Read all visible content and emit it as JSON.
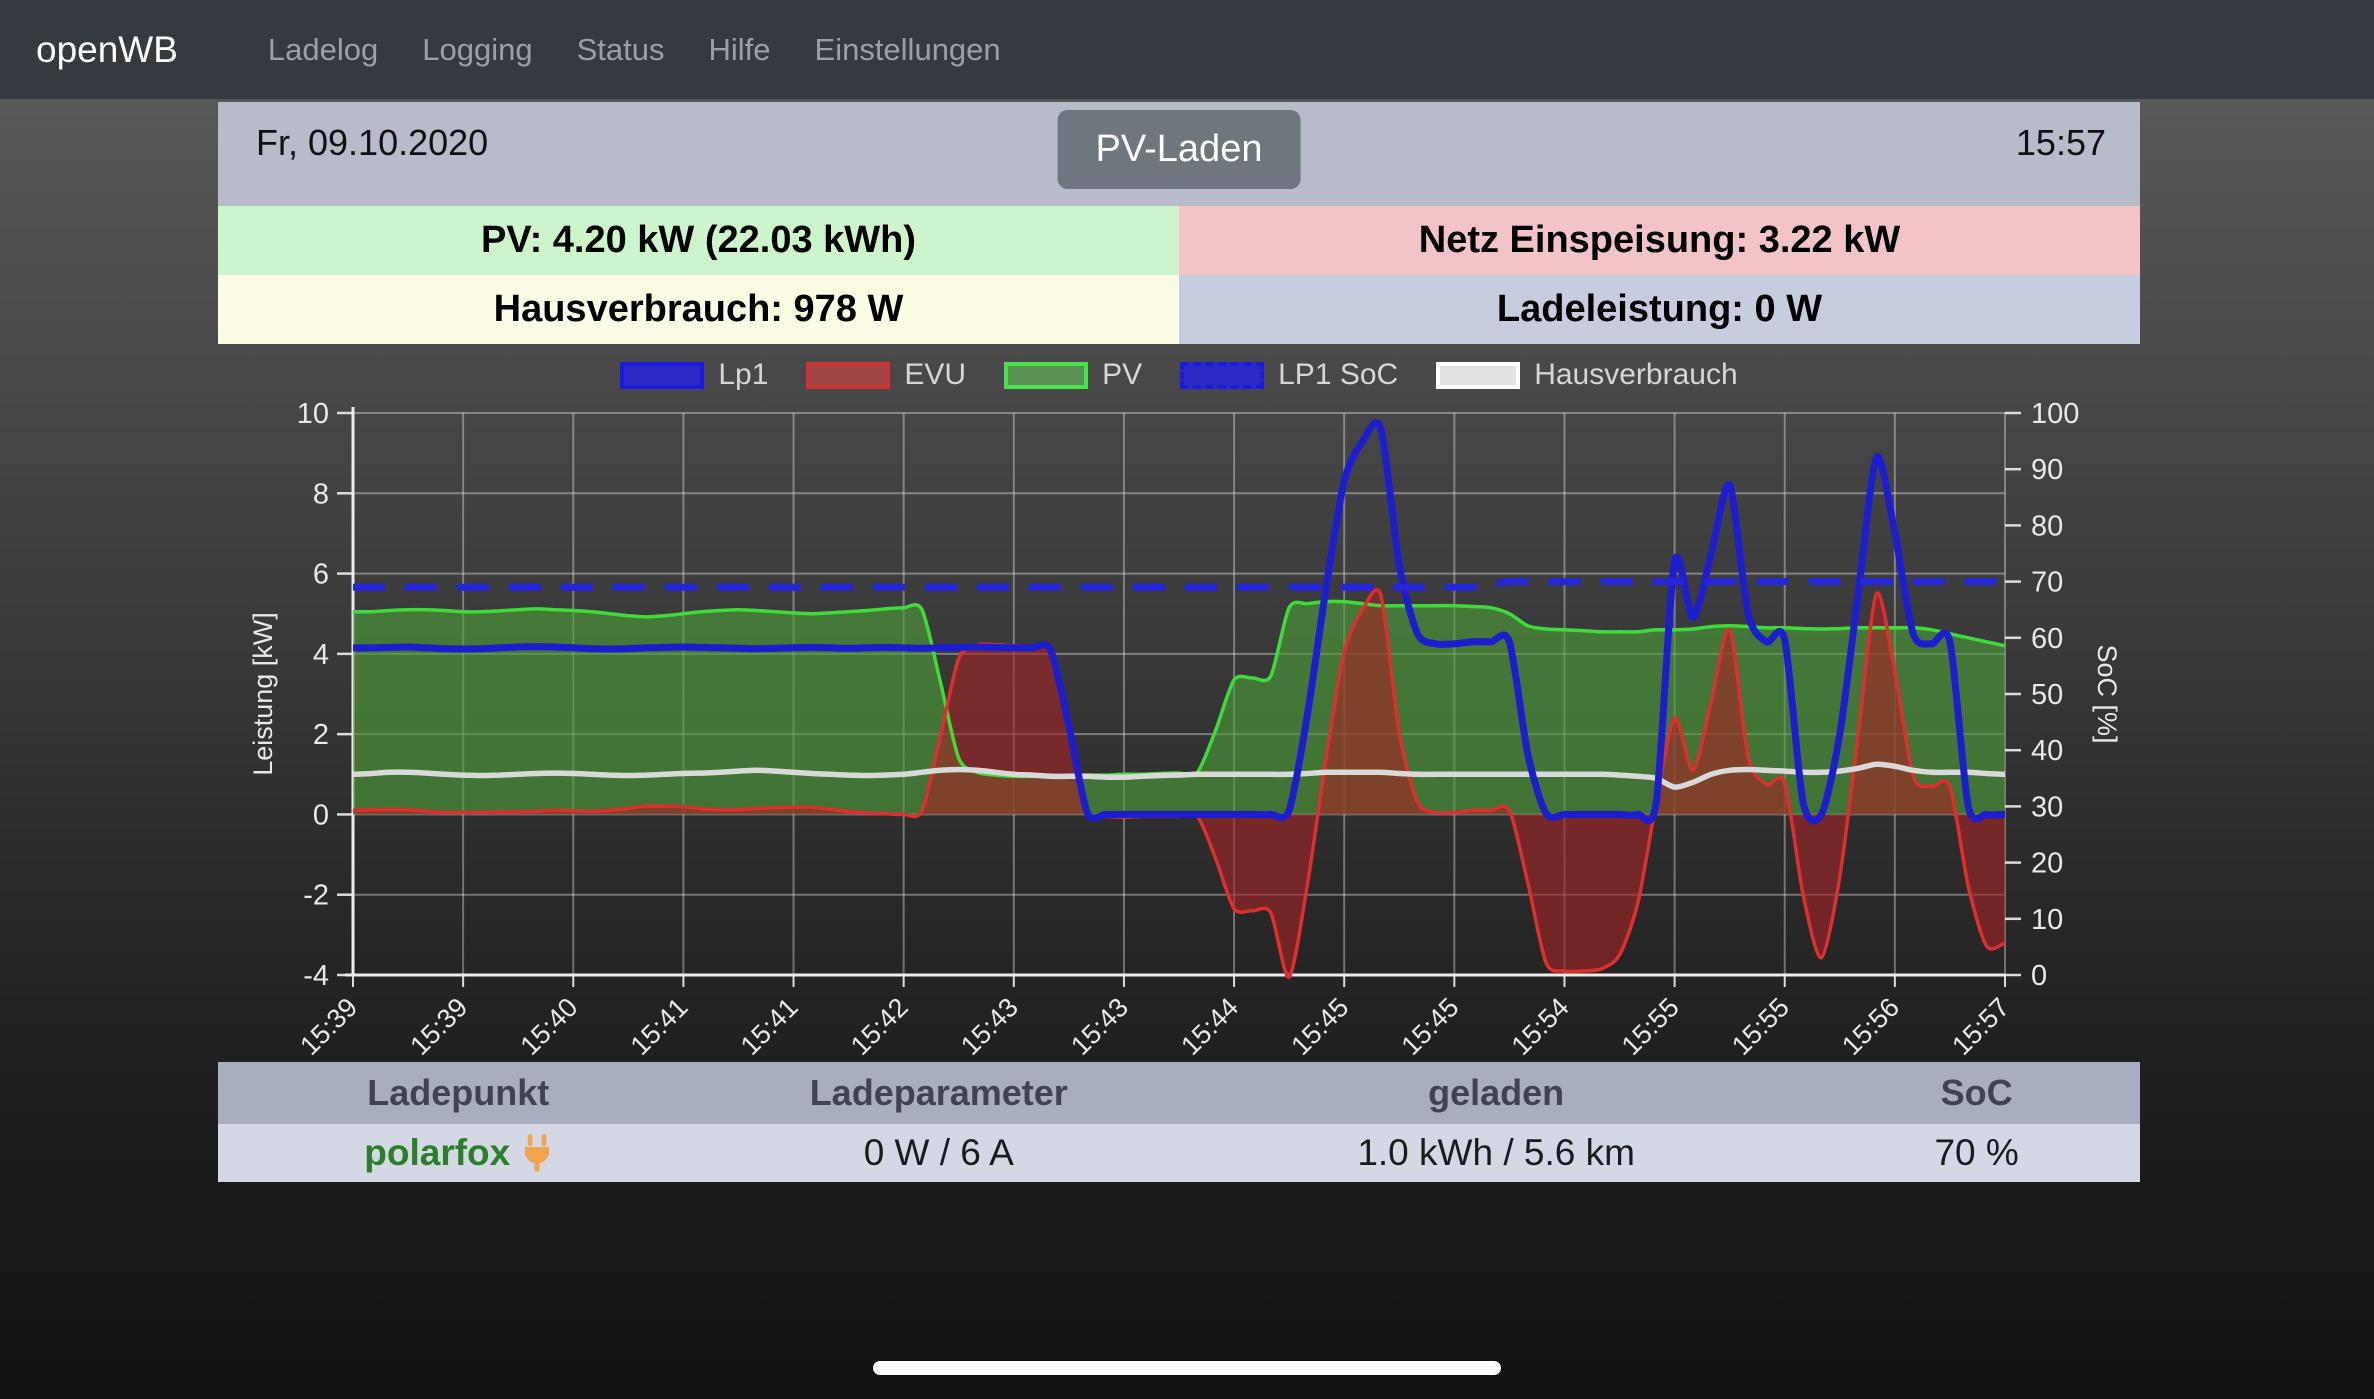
{
  "navbar": {
    "brand": "openWB",
    "items": [
      "Ladelog",
      "Logging",
      "Status",
      "Hilfe",
      "Einstellungen"
    ]
  },
  "header": {
    "date": "Fr, 09.10.2020",
    "mode_button": "PV-Laden",
    "time": "15:57"
  },
  "info_boxes": {
    "pv": {
      "label": "PV: 4.20 kW (22.03 kWh)",
      "bg": "#ccf5cb"
    },
    "grid": {
      "label": "Netz Einspeisung: 3.22 kW",
      "bg": "#f2c4c8"
    },
    "house": {
      "label": "Hausverbrauch: 978 W",
      "bg": "#fcfbe4"
    },
    "charge": {
      "label": "Ladeleistung: 0 W",
      "bg": "#c6cddf"
    }
  },
  "chart_data": {
    "type": "line",
    "title": "",
    "xlabel": "",
    "ylabel": "Leistung [kW]",
    "y2label": "SoC [%]",
    "grid": true,
    "legend_position": "top",
    "points_per_label": 6,
    "x_tick_labels": [
      "15:39",
      "15:39",
      "15:40",
      "15:41",
      "15:41",
      "15:42",
      "15:43",
      "15:43",
      "15:44",
      "15:45",
      "15:45",
      "15:54",
      "15:55",
      "15:55",
      "15:56",
      "15:57"
    ],
    "y_left": {
      "label": "Leistung [kW]",
      "min": -4,
      "max": 10,
      "ticks": [
        10,
        8,
        6,
        4,
        2,
        0,
        -2,
        -4
      ]
    },
    "y_right": {
      "label": "SoC [%]",
      "min": 0,
      "max": 100,
      "ticks": [
        100,
        90,
        80,
        70,
        60,
        50,
        40,
        30,
        20,
        10,
        0
      ]
    },
    "legend": [
      {
        "label": "Lp1",
        "fill": "#2a2ac4",
        "border": "#1a1ae0",
        "dashed": false
      },
      {
        "label": "EVU",
        "fill": "#9e4545",
        "border": "#cc3333",
        "dashed": false
      },
      {
        "label": "PV",
        "fill": "#5a9150",
        "border": "#4ae24a",
        "dashed": false
      },
      {
        "label": "LP1 SoC",
        "fill": "#2a2ac4",
        "border": "#1a1ae0",
        "dashed": true
      },
      {
        "label": "Hausverbrauch",
        "fill": "#e2e2e2",
        "border": "#ffffff",
        "dashed": false
      }
    ],
    "series": [
      {
        "name": "Lp1",
        "axis": "left",
        "color": "#1d1dd0",
        "width": 7,
        "fill": null,
        "dash": null,
        "values": [
          4.15,
          4.15,
          4.16,
          4.17,
          4.15,
          4.13,
          4.12,
          4.13,
          4.15,
          4.17,
          4.18,
          4.17,
          4.15,
          4.13,
          4.12,
          4.13,
          4.15,
          4.16,
          4.17,
          4.16,
          4.15,
          4.14,
          4.13,
          4.14,
          4.15,
          4.16,
          4.15,
          4.14,
          4.15,
          4.16,
          4.15,
          4.14,
          4.15,
          4.16,
          4.17,
          4.16,
          4.15,
          4.15,
          4.1,
          2.2,
          0.05,
          0,
          0,
          0,
          0,
          0,
          0,
          0,
          0,
          0,
          0,
          0.1,
          2.5,
          5.6,
          8.3,
          9.3,
          9.6,
          6.2,
          4.5,
          4.25,
          4.25,
          4.3,
          4.3,
          4.3,
          1.5,
          0.02,
          0,
          0,
          0,
          0,
          0,
          0.3,
          6.3,
          4.9,
          6.5,
          8.2,
          5.0,
          4.3,
          4.35,
          0.3,
          0,
          2.0,
          5.5,
          8.9,
          7.0,
          4.5,
          4.25,
          4.3,
          0.2,
          0,
          0
        ]
      },
      {
        "name": "EVU",
        "axis": "left",
        "color": "#dd2f2f",
        "width": 3.5,
        "fill": "rgba(163,36,36,0.62)",
        "dash": null,
        "values": [
          0.1,
          0.12,
          0.13,
          0.12,
          0.08,
          0.05,
          0.05,
          0.05,
          0.06,
          0.07,
          0.08,
          0.1,
          0.09,
          0.08,
          0.1,
          0.15,
          0.21,
          0.21,
          0.19,
          0.14,
          0.12,
          0.12,
          0.15,
          0.17,
          0.18,
          0.18,
          0.13,
          0.07,
          0.04,
          0.02,
          0.0,
          0.09,
          1.95,
          3.88,
          4.22,
          4.23,
          4.2,
          4.18,
          4.09,
          2.18,
          0.02,
          -0.05,
          -0.07,
          -0.05,
          -0.05,
          -0.05,
          -0.05,
          -1.1,
          -2.35,
          -2.4,
          -2.45,
          -4.05,
          -1.73,
          1.35,
          4.05,
          5.1,
          5.45,
          2.02,
          0.3,
          0.05,
          0.05,
          0.1,
          0.1,
          0.1,
          -1.7,
          -3.7,
          -3.9,
          -3.9,
          -3.85,
          -3.5,
          -2.2,
          0.3,
          2.4,
          1.1,
          2.82,
          4.6,
          1.44,
          0.75,
          0.78,
          -2.0,
          -3.57,
          -1.55,
          2.0,
          5.5,
          3.55,
          0.95,
          0.7,
          0.7,
          -1.8,
          -3.28,
          -3.2
        ]
      },
      {
        "name": "PV",
        "axis": "left",
        "color": "#3fdb3a",
        "width": 3.5,
        "fill": "rgba(76,158,56,0.62)",
        "dash": null,
        "values": [
          5.05,
          5.05,
          5.08,
          5.1,
          5.1,
          5.08,
          5.05,
          5.05,
          5.07,
          5.1,
          5.12,
          5.1,
          5.08,
          5.05,
          5.0,
          4.95,
          4.92,
          4.95,
          5.0,
          5.05,
          5.08,
          5.1,
          5.08,
          5.05,
          5.02,
          5.0,
          5.02,
          5.05,
          5.08,
          5.12,
          5.15,
          5.1,
          3.3,
          1.4,
          1.05,
          0.98,
          0.95,
          0.95,
          0.96,
          0.97,
          0.98,
          0.98,
          1.0,
          1.0,
          1.02,
          1.03,
          1.05,
          2.1,
          3.35,
          3.4,
          3.45,
          5.15,
          5.25,
          5.3,
          5.3,
          5.25,
          5.2,
          5.2,
          5.2,
          5.2,
          5.2,
          5.18,
          5.15,
          5.0,
          4.7,
          4.62,
          4.6,
          4.58,
          4.55,
          4.55,
          4.55,
          4.6,
          4.6,
          4.62,
          4.68,
          4.7,
          4.68,
          4.65,
          4.65,
          4.63,
          4.62,
          4.63,
          4.65,
          4.65,
          4.65,
          4.65,
          4.6,
          4.5,
          4.4,
          4.3,
          4.2
        ]
      },
      {
        "name": "LP1 SoC",
        "axis": "right",
        "color": "#2525da",
        "width": 7,
        "fill": null,
        "dash": [
          32,
          20
        ],
        "values": [
          69,
          69,
          69,
          69,
          69,
          69,
          69,
          69,
          69,
          69,
          69,
          69,
          69,
          69,
          69,
          69,
          69,
          69,
          69,
          69,
          69,
          69,
          69,
          69,
          69,
          69,
          69,
          69,
          69,
          69,
          69,
          69,
          69,
          69,
          69,
          69,
          69,
          69,
          69,
          69,
          69,
          69,
          69,
          69,
          69,
          69,
          69,
          69,
          69,
          69,
          69,
          69,
          69,
          69,
          69,
          69,
          69,
          69,
          69,
          69,
          69,
          69,
          69.5,
          70,
          70,
          70,
          70,
          70,
          70,
          70,
          70,
          70,
          70,
          70,
          70,
          70,
          70,
          70,
          70,
          70,
          70,
          70,
          70,
          70,
          70,
          70,
          70,
          70,
          70,
          70,
          70
        ]
      },
      {
        "name": "Hausverbrauch",
        "axis": "left",
        "color": "#d9d9d9",
        "width": 5.5,
        "fill": null,
        "dash": null,
        "values": [
          1.0,
          1.02,
          1.05,
          1.05,
          1.03,
          1.0,
          0.98,
          0.97,
          0.98,
          1.0,
          1.02,
          1.03,
          1.02,
          1.0,
          0.98,
          0.97,
          0.98,
          1.0,
          1.02,
          1.03,
          1.05,
          1.08,
          1.1,
          1.08,
          1.05,
          1.02,
          1.0,
          0.98,
          0.97,
          0.98,
          1.0,
          1.05,
          1.1,
          1.12,
          1.1,
          1.05,
          1.0,
          0.98,
          0.95,
          0.95,
          0.95,
          0.93,
          0.93,
          0.95,
          0.97,
          0.98,
          1.0,
          1.0,
          1.0,
          1.0,
          1.0,
          1.0,
          1.02,
          1.05,
          1.05,
          1.05,
          1.05,
          1.02,
          1.0,
          1.0,
          1.0,
          1.0,
          1.0,
          1.0,
          1.0,
          1.0,
          1.0,
          1.0,
          1.0,
          0.98,
          0.95,
          0.9,
          0.68,
          0.8,
          1.0,
          1.1,
          1.12,
          1.1,
          1.08,
          1.05,
          1.05,
          1.08,
          1.15,
          1.25,
          1.2,
          1.1,
          1.05,
          1.05,
          1.05,
          1.02,
          1.0
        ]
      }
    ]
  },
  "table": {
    "headers": [
      "Ladepunkt",
      "Ladeparameter",
      "geladen",
      "SoC"
    ],
    "row": {
      "name": "polarfox",
      "name_color": "#2e7d2a",
      "plug_color": "#f0a44c",
      "params": "0 W / 6 A",
      "charged": "1.0 kWh / 5.6 km",
      "soc": "70 %"
    }
  }
}
